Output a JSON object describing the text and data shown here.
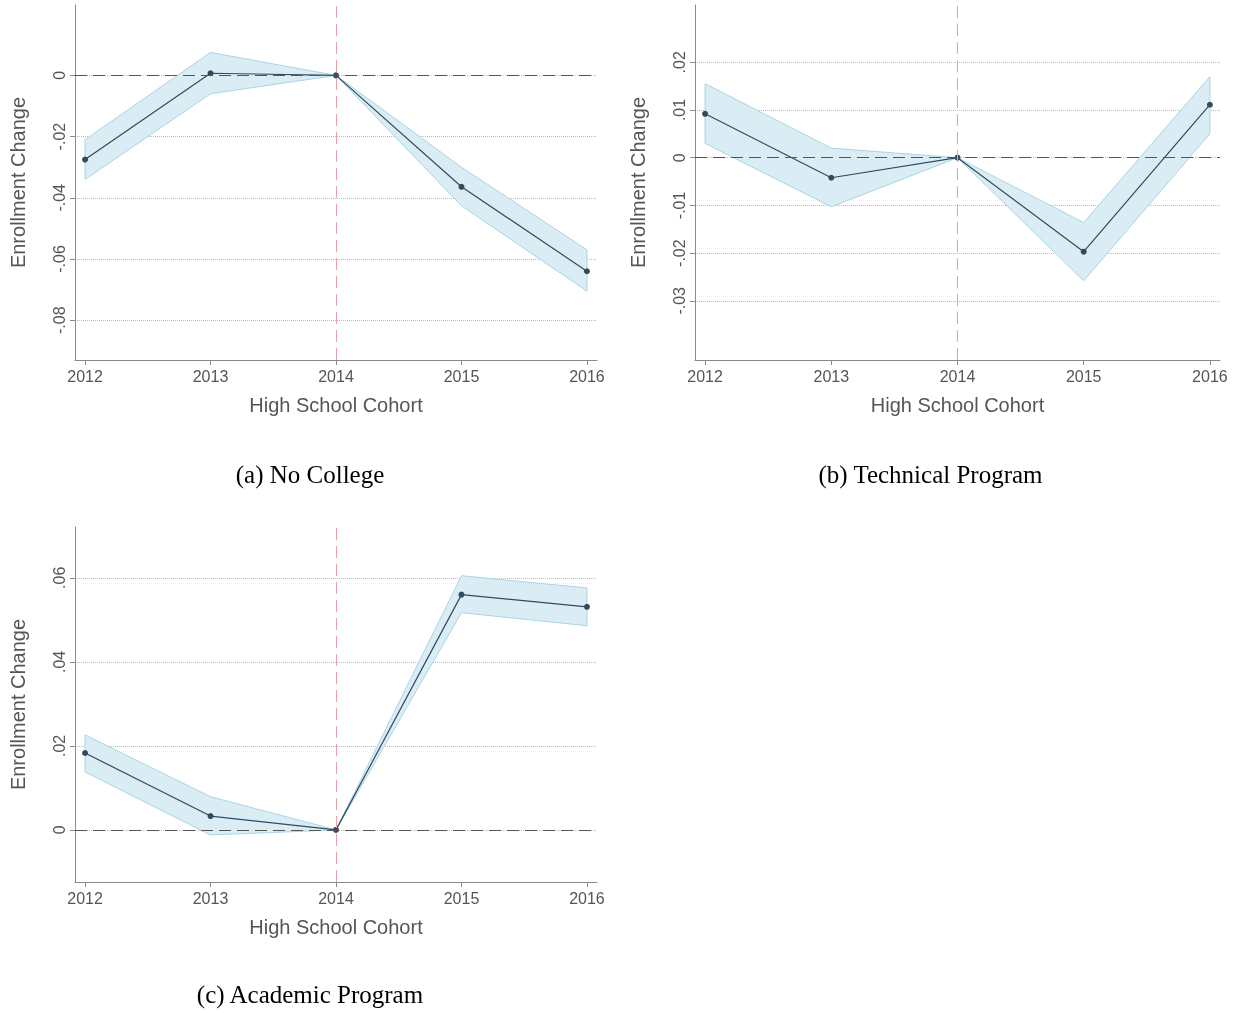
{
  "chart_data": [
    {
      "type": "line",
      "title": "(a) No College",
      "xlabel": "High School Cohort",
      "ylabel": "Enrollment Change",
      "x": [
        2012,
        2013,
        2014,
        2015,
        2016
      ],
      "series": [
        {
          "color": "#34495e",
          "values": [
            -0.0275,
            0.0007,
            0,
            -0.0364,
            -0.064
          ],
          "lower": [
            -0.034,
            -0.006,
            0,
            -0.0426,
            -0.0705
          ],
          "upper": [
            -0.021,
            0.0075,
            0,
            -0.03,
            -0.057
          ]
        }
      ],
      "xlim": [
        2011.92,
        2016.08
      ],
      "xticks": [
        2012,
        2013,
        2014,
        2015,
        2016
      ],
      "ylim": [
        -0.093,
        0.023
      ],
      "yticks": [
        {
          "value": -0.08,
          "label": "-.08"
        },
        {
          "value": -0.06,
          "label": "-.06"
        },
        {
          "value": -0.04,
          "label": "-.04"
        },
        {
          "value": -0.02,
          "label": "-.02"
        },
        {
          "value": 0,
          "label": "0"
        }
      ],
      "grid": "y",
      "marker": "circle",
      "line_style": "solid",
      "ref_lines": [
        {
          "axis": "y",
          "value": 0,
          "color": "#555555",
          "line_style": "dashed"
        },
        {
          "axis": "x",
          "value": 2014,
          "color": "#e8a0a6",
          "line_style": "dashed"
        }
      ]
    },
    {
      "type": "line",
      "title": "(b) Technical Program",
      "xlabel": "High School Cohort",
      "ylabel": "Enrollment Change",
      "x": [
        2012,
        2013,
        2014,
        2015,
        2016
      ],
      "series": [
        {
          "color": "#34495e",
          "values": [
            0.0092,
            -0.0042,
            0,
            -0.0197,
            0.0111
          ],
          "lower": [
            0.003,
            -0.0103,
            0,
            -0.0258,
            0.005
          ],
          "upper": [
            0.0155,
            0.002,
            0,
            -0.0136,
            0.017
          ]
        }
      ],
      "xlim": [
        2011.92,
        2016.08
      ],
      "xticks": [
        2012,
        2013,
        2014,
        2015,
        2016
      ],
      "ylim": [
        -0.0424,
        0.032
      ],
      "yticks": [
        {
          "value": -0.03,
          "label": "-.03"
        },
        {
          "value": -0.02,
          "label": "-.02"
        },
        {
          "value": -0.01,
          "label": "-.01"
        },
        {
          "value": 0,
          "label": "0"
        },
        {
          "value": 0.01,
          "label": ".01"
        },
        {
          "value": 0.02,
          "label": ".02"
        }
      ],
      "grid": "y",
      "marker": "circle",
      "line_style": "solid",
      "ref_lines": [
        {
          "axis": "y",
          "value": 0,
          "color": "#555555",
          "line_style": "dashed"
        },
        {
          "axis": "x",
          "value": 2014,
          "color": "#e8a0a6",
          "line_style": "dashed"
        }
      ]
    },
    {
      "type": "line",
      "title": "(c) Academic Program",
      "xlabel": "High School Cohort",
      "ylabel": "Enrollment Change",
      "x": [
        2012,
        2013,
        2014,
        2015,
        2016
      ],
      "series": [
        {
          "color": "#34495e",
          "values": [
            0.0183,
            0.0033,
            0,
            0.056,
            0.0531
          ],
          "lower": [
            0.0138,
            -0.0012,
            0,
            0.0517,
            0.0486
          ],
          "upper": [
            0.0226,
            0.0079,
            0,
            0.0605,
            0.0576
          ]
        }
      ],
      "xlim": [
        2011.92,
        2016.08
      ],
      "xticks": [
        2012,
        2013,
        2014,
        2015,
        2016
      ],
      "ylim": [
        -0.0124,
        0.0721
      ],
      "yticks": [
        {
          "value": 0,
          "label": "0"
        },
        {
          "value": 0.02,
          "label": ".02"
        },
        {
          "value": 0.04,
          "label": ".04"
        },
        {
          "value": 0.06,
          "label": ".06"
        }
      ],
      "grid": "y",
      "marker": "circle",
      "line_style": "solid",
      "ref_lines": [
        {
          "axis": "y",
          "value": 0,
          "color": "#555555",
          "line_style": "dashed"
        },
        {
          "axis": "x",
          "value": 2014,
          "color": "#e8a0a6",
          "line_style": "dashed"
        }
      ]
    }
  ]
}
